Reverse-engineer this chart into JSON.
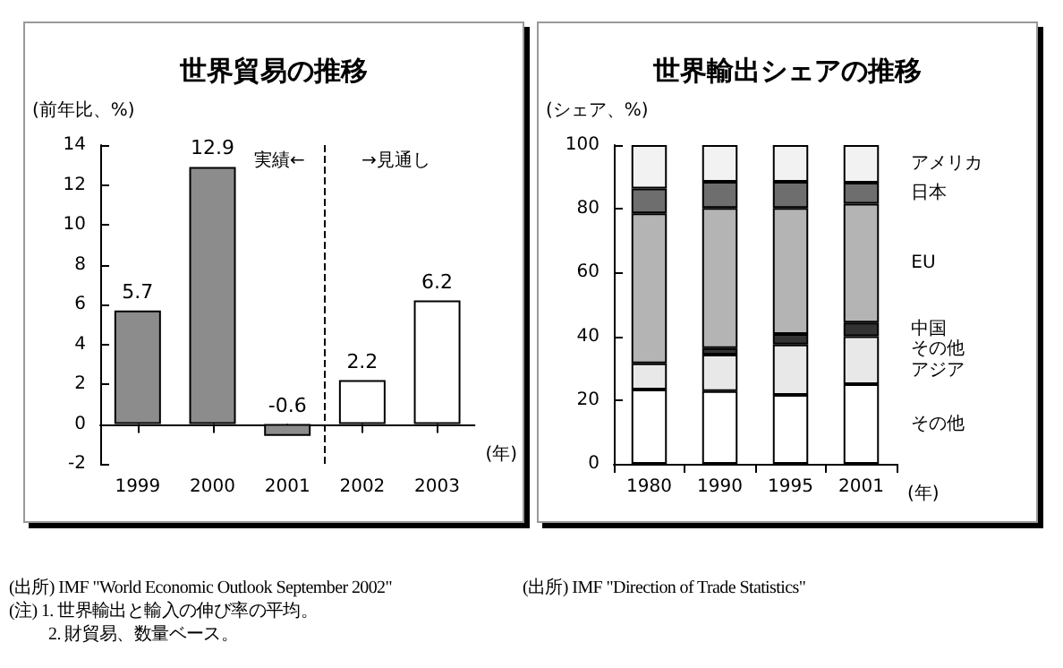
{
  "chart_data": [
    {
      "type": "bar",
      "title": "世界貿易の推移",
      "ylabel": "(前年比、%)",
      "xlabel": "(年)",
      "x": [
        1999,
        2000,
        2001,
        2002,
        2003
      ],
      "xlim": [
        1998.5,
        2003.5
      ],
      "xticks": [
        1999,
        2000,
        2001,
        2002,
        2003
      ],
      "ref_lines": [
        {
          "axis": "x",
          "value": 2001.5,
          "line_style": "dashed",
          "color": "#000000"
        }
      ],
      "values": [
        5.7,
        12.9,
        -0.6,
        2.2,
        6.2
      ],
      "colors": [
        "#8c8c8c",
        "#8c8c8c",
        "#8c8c8c",
        "#ffffff",
        "#ffffff"
      ],
      "ylim": [
        -2,
        14
      ],
      "yticks": [
        -2,
        0,
        2,
        4,
        6,
        8,
        10,
        12,
        14
      ],
      "data_labels": true,
      "legend": false,
      "annotations": [
        "実績←",
        "→見通し",
        "(出所) IMF \"World Economic Outlook September 2002\"",
        "(注) 1. 世界輸出と輸入の伸び率の平均。",
        "2. 財貿易、数量ベース。"
      ]
    },
    {
      "type": "bar",
      "title": "世界輸出シェアの推移",
      "ylabel": "(シェア、%)",
      "xlabel": "(年)",
      "stacked": true,
      "categories": [
        "1980",
        "1990",
        "1995",
        "2001"
      ],
      "series": [
        {
          "name": "その他",
          "color": "#ffffff",
          "values": [
            23.3,
            22.8,
            21.6,
            25.0
          ]
        },
        {
          "name": "その他アジア",
          "color": "#e8e8e8",
          "values": [
            8.2,
            11.5,
            15.8,
            15.0
          ]
        },
        {
          "name": "中国",
          "color": "#333333",
          "values": [
            0,
            2.0,
            3.3,
            4.3
          ]
        },
        {
          "name": "EU",
          "color": "#b4b4b4",
          "values": [
            47.1,
            44.0,
            39.6,
            37.3
          ]
        },
        {
          "name": "日本",
          "color": "#6e6e6e",
          "values": [
            7.8,
            8.2,
            8.2,
            6.6
          ]
        },
        {
          "name": "アメリカ",
          "color": "#f2f2f2",
          "values": [
            13.6,
            11.5,
            11.5,
            11.8
          ]
        }
      ],
      "ylim": [
        0,
        100
      ],
      "yticks": [
        0,
        20,
        40,
        60,
        80,
        100
      ],
      "legend": false,
      "annotations": [
        "(出所) IMF \"Direction of Trade Statistics\""
      ]
    }
  ]
}
